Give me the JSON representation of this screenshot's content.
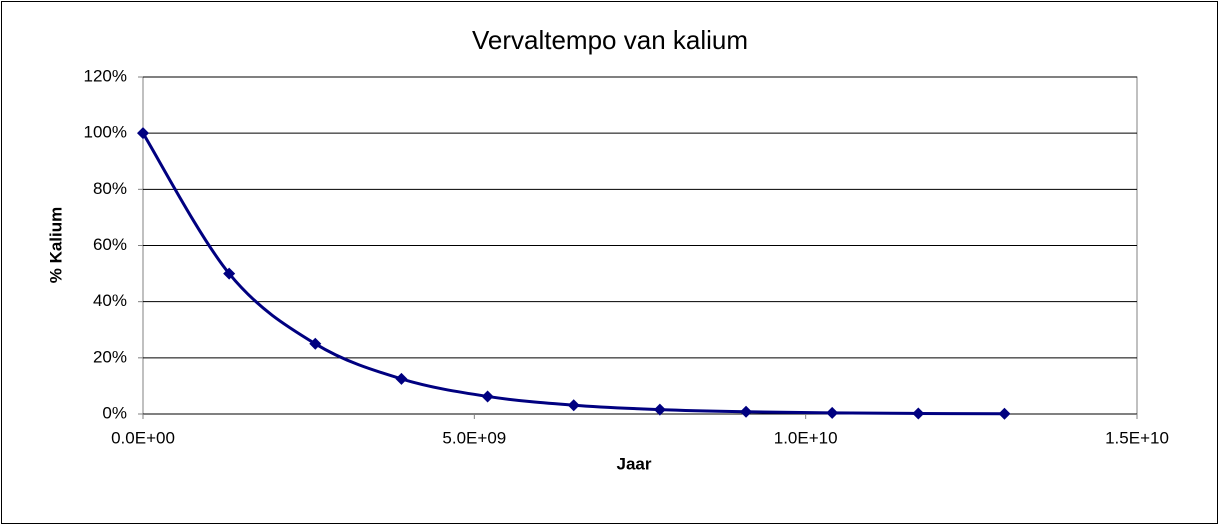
{
  "chart_data": {
    "type": "line",
    "title": "Vervaltempo van kalium",
    "x_label": "Jaar",
    "y_label": "% Kalium",
    "x": [
      0,
      1300000000,
      2600000000,
      3900000000,
      5200000000,
      6500000000,
      7800000000,
      9100000000,
      10400000000,
      11700000000,
      13000000000
    ],
    "series": [
      {
        "color": "#000080",
        "values": [
          100,
          50,
          25,
          12.5,
          6.25,
          3.125,
          1.5625,
          0.78125,
          0.390625,
          0.1953125,
          0.09765625
        ]
      }
    ],
    "xlim": [
      0,
      15000000000
    ],
    "xticks": [
      {
        "value": 0,
        "label": "0.0E+00"
      },
      {
        "value": 5000000000,
        "label": "5.0E+09"
      },
      {
        "value": 10000000000,
        "label": "1.0E+10"
      },
      {
        "value": 15000000000,
        "label": "1.5E+10"
      }
    ],
    "ylim": [
      0,
      120
    ],
    "yticks": [
      {
        "value": 0,
        "label": "0%"
      },
      {
        "value": 20,
        "label": "20%"
      },
      {
        "value": 40,
        "label": "40%"
      },
      {
        "value": 60,
        "label": "60%"
      },
      {
        "value": 80,
        "label": "80%"
      },
      {
        "value": 100,
        "label": "100%"
      },
      {
        "value": 120,
        "label": "120%"
      }
    ],
    "grid": true,
    "smooth": true
  }
}
